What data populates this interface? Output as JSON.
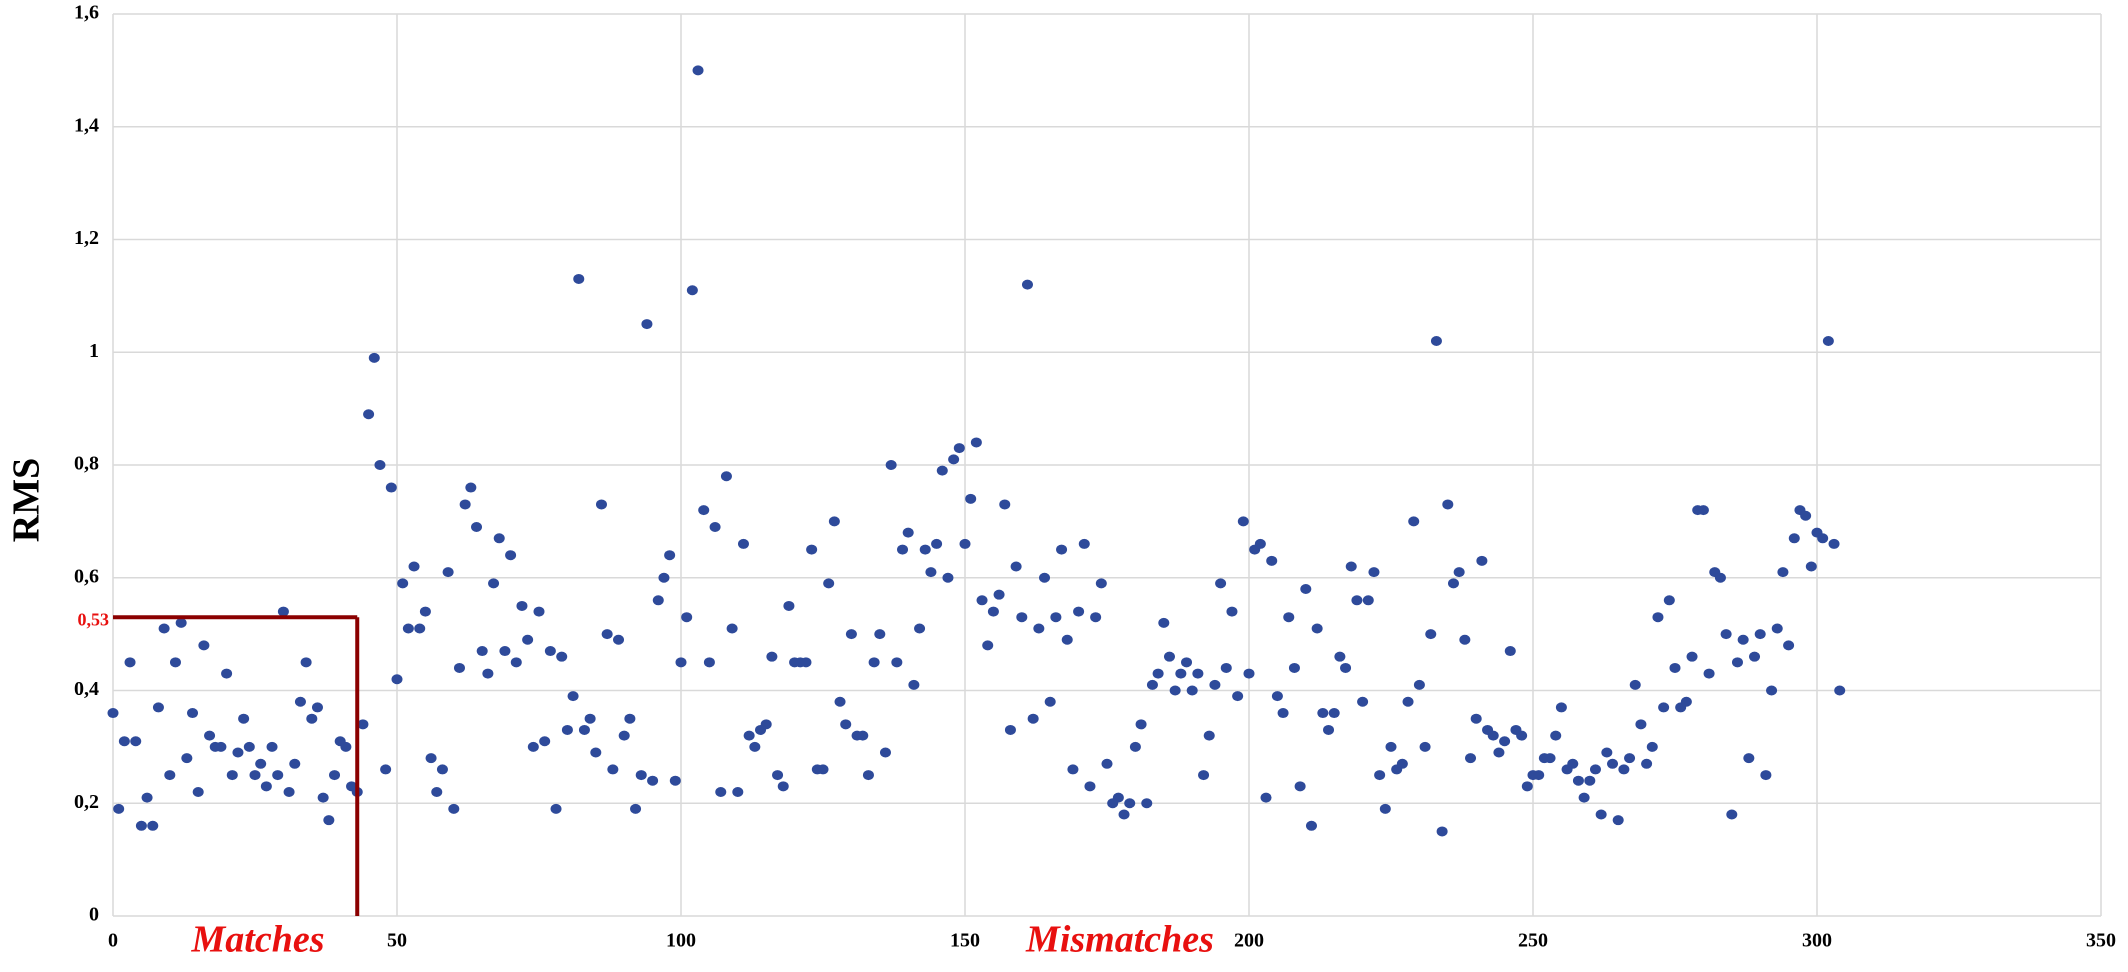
{
  "chart_data": {
    "type": "scatter",
    "ylabel": "RMS",
    "color": "#2e4a9a",
    "grid": true,
    "xlim": [
      0,
      350
    ],
    "ylim": [
      0,
      1.6
    ],
    "xticks": [
      0,
      50,
      100,
      150,
      200,
      250,
      300,
      350
    ],
    "yticks": [
      0,
      {
        "value": 0.2,
        "label": "0,2"
      },
      {
        "value": 0.4,
        "label": "0,4"
      },
      {
        "value": 0.6,
        "label": "0,6"
      },
      {
        "value": 0.8,
        "label": "0,8"
      },
      1,
      {
        "value": 1.2,
        "label": "1,2"
      },
      {
        "value": 1.4,
        "label": "1,4"
      },
      {
        "value": 1.6,
        "label": "1,6"
      }
    ],
    "threshold": {
      "value": 0.53,
      "label": "0,53",
      "x": 43,
      "color": "#8b0000"
    },
    "annotations": [
      {
        "text": "Matches"
      },
      {
        "text": "Mismatches"
      }
    ],
    "x": [
      0,
      1,
      2,
      3,
      4,
      5,
      6,
      7,
      8,
      9,
      10,
      11,
      12,
      13,
      14,
      15,
      16,
      17,
      18,
      19,
      20,
      21,
      22,
      23,
      24,
      25,
      26,
      27,
      28,
      29,
      30,
      31,
      32,
      33,
      34,
      35,
      36,
      37,
      38,
      39,
      40,
      41,
      42,
      43,
      44,
      45,
      46,
      47,
      48,
      49,
      50,
      51,
      52,
      53,
      54,
      55,
      56,
      57,
      58,
      59,
      60,
      61,
      62,
      63,
      64,
      65,
      66,
      67,
      68,
      69,
      70,
      71,
      72,
      73,
      74,
      75,
      76,
      77,
      78,
      79,
      80,
      81,
      82,
      83,
      84,
      85,
      86,
      87,
      88,
      89,
      90,
      91,
      92,
      93,
      94,
      95,
      96,
      97,
      98,
      99,
      100,
      101,
      102,
      103,
      104,
      105,
      106,
      107,
      108,
      109,
      110,
      111,
      112,
      113,
      114,
      115,
      116,
      117,
      118,
      119,
      120,
      121,
      122,
      123,
      124,
      125,
      126,
      127,
      128,
      129,
      130,
      131,
      132,
      133,
      134,
      135,
      136,
      137,
      138,
      139,
      140,
      141,
      142,
      143,
      144,
      145,
      146,
      147,
      148,
      149,
      150,
      151,
      152,
      153,
      154,
      155,
      156,
      157,
      158,
      159,
      160,
      161,
      162,
      163,
      164,
      165,
      166,
      167,
      168,
      169,
      170,
      171,
      172,
      173,
      174,
      175,
      176,
      177,
      178,
      179,
      180,
      181,
      182,
      183,
      184,
      185,
      186,
      187,
      188,
      189,
      190,
      191,
      192,
      193,
      194,
      195,
      196,
      197,
      198,
      199,
      200,
      201,
      202,
      203,
      204,
      205,
      206,
      207,
      208,
      209,
      210,
      211,
      212,
      213,
      214,
      215,
      216,
      217,
      218,
      219,
      220,
      221,
      222,
      223,
      224,
      225,
      226,
      227,
      228,
      229,
      230,
      231,
      232,
      233,
      234,
      235,
      236,
      237,
      238,
      239,
      240,
      241,
      242,
      243,
      244,
      245,
      246,
      247,
      248,
      249,
      250,
      251,
      252,
      253,
      254,
      255,
      256,
      257,
      258,
      259,
      260,
      261,
      262,
      263,
      264,
      265,
      266,
      267,
      268,
      269,
      270,
      271,
      272,
      273,
      274,
      275,
      276,
      277,
      278,
      279,
      280,
      281,
      282,
      283,
      284,
      285,
      286,
      287,
      288,
      289,
      290,
      291,
      292,
      293,
      294,
      295,
      296,
      297,
      298,
      299,
      300,
      301,
      302,
      303,
      304
    ],
    "values": [
      0.36,
      0.19,
      0.31,
      0.45,
      0.31,
      0.16,
      0.21,
      0.16,
      0.37,
      0.51,
      0.25,
      0.45,
      0.52,
      0.28,
      0.36,
      0.22,
      0.48,
      0.32,
      0.3,
      0.3,
      0.43,
      0.25,
      0.29,
      0.35,
      0.3,
      0.25,
      0.27,
      0.23,
      0.3,
      0.25,
      0.54,
      0.22,
      0.27,
      0.38,
      0.45,
      0.35,
      0.37,
      0.21,
      0.17,
      0.25,
      0.31,
      0.3,
      0.23,
      0.22,
      0.34,
      0.89,
      0.99,
      0.8,
      0.26,
      0.76,
      0.42,
      0.59,
      0.51,
      0.62,
      0.51,
      0.54,
      0.28,
      0.22,
      0.26,
      0.61,
      0.19,
      0.44,
      0.73,
      0.76,
      0.69,
      0.47,
      0.43,
      0.59,
      0.67,
      0.47,
      0.64,
      0.45,
      0.55,
      0.49,
      0.3,
      0.54,
      0.31,
      0.47,
      0.19,
      0.46,
      0.33,
      0.39,
      1.13,
      0.33,
      0.35,
      0.29,
      0.73,
      0.5,
      0.26,
      0.49,
      0.32,
      0.35,
      0.19,
      0.25,
      1.05,
      0.24,
      0.56,
      0.6,
      0.64,
      0.24,
      0.45,
      0.53,
      1.11,
      1.5,
      0.72,
      0.45,
      0.69,
      0.22,
      0.78,
      0.51,
      0.22,
      0.66,
      0.32,
      0.3,
      0.33,
      0.34,
      0.46,
      0.25,
      0.23,
      0.55,
      0.45,
      0.45,
      0.45,
      0.65,
      0.26,
      0.26,
      0.59,
      0.7,
      0.38,
      0.34,
      0.5,
      0.32,
      0.32,
      0.25,
      0.45,
      0.5,
      0.29,
      0.8,
      0.45,
      0.65,
      0.68,
      0.41,
      0.51,
      0.65,
      0.61,
      0.66,
      0.79,
      0.6,
      0.81,
      0.83,
      0.66,
      0.74,
      0.84,
      0.56,
      0.48,
      0.54,
      0.57,
      0.73,
      0.33,
      0.62,
      0.53,
      1.12,
      0.35,
      0.51,
      0.6,
      0.38,
      0.53,
      0.65,
      0.49,
      0.26,
      0.54,
      0.66,
      0.23,
      0.53,
      0.59,
      0.27,
      0.2,
      0.21,
      0.18,
      0.2,
      0.3,
      0.34,
      0.2,
      0.41,
      0.43,
      0.52,
      0.46,
      0.4,
      0.43,
      0.45,
      0.4,
      0.43,
      0.25,
      0.32,
      0.41,
      0.59,
      0.44,
      0.54,
      0.39,
      0.7,
      0.43,
      0.65,
      0.66,
      0.21,
      0.63,
      0.39,
      0.36,
      0.53,
      0.44,
      0.23,
      0.58,
      0.16,
      0.51,
      0.36,
      0.33,
      0.36,
      0.46,
      0.44,
      0.62,
      0.56,
      0.38,
      0.56,
      0.61,
      0.25,
      0.19,
      0.3,
      0.26,
      0.27,
      0.38,
      0.7,
      0.41,
      0.3,
      0.5,
      1.02,
      0.15,
      0.73,
      0.59,
      0.61,
      0.49,
      0.28,
      0.35,
      0.63,
      0.33,
      0.32,
      0.29,
      0.31,
      0.47,
      0.33,
      0.32,
      0.23,
      0.25,
      0.25,
      0.28,
      0.28,
      0.32,
      0.37,
      0.26,
      0.27,
      0.24,
      0.21,
      0.24,
      0.26,
      0.18,
      0.29,
      0.27,
      0.17,
      0.26,
      0.28,
      0.41,
      0.34,
      0.27,
      0.3,
      0.53,
      0.37,
      0.56,
      0.44,
      0.37,
      0.38,
      0.46,
      0.72,
      0.72,
      0.43,
      0.61,
      0.6,
      0.5,
      0.18,
      0.45,
      0.49,
      0.28,
      0.46,
      0.5,
      0.25,
      0.4,
      0.51,
      0.61,
      0.48,
      0.67,
      0.72,
      0.71,
      0.62,
      0.68,
      0.67,
      1.02,
      0.66,
      0.4
    ]
  }
}
